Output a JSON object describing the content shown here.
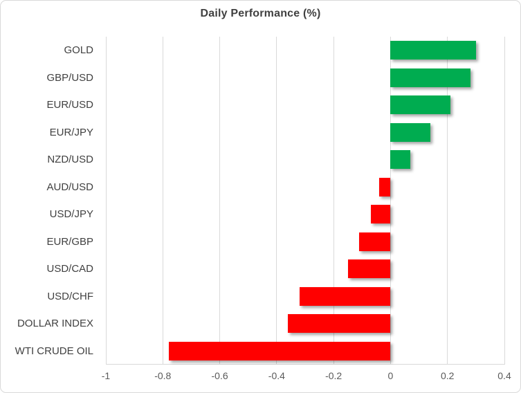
{
  "chart_data": {
    "type": "bar",
    "orientation": "horizontal",
    "title": "Daily Performance (%)",
    "categories": [
      "GOLD",
      "GBP/USD",
      "EUR/USD",
      "EUR/JPY",
      "NZD/USD",
      "AUD/USD",
      "USD/JPY",
      "EUR/GBP",
      "USD/CAD",
      "USD/CHF",
      "DOLLAR INDEX",
      "WTI CRUDE OIL"
    ],
    "values": [
      0.3,
      0.28,
      0.21,
      0.14,
      0.07,
      -0.04,
      -0.07,
      -0.11,
      -0.15,
      -0.32,
      -0.36,
      -0.78
    ],
    "xlabel": "",
    "ylabel": "",
    "xlim": [
      -1,
      0.4
    ],
    "x_ticks": [
      -1,
      -0.8,
      -0.6,
      -0.4,
      -0.2,
      0,
      0.2,
      0.4
    ],
    "x_tick_labels": [
      "-1",
      "-0.8",
      "-0.6",
      "-0.4",
      "-0.2",
      "0",
      "0.2",
      "0.4"
    ],
    "grid": true,
    "legend": "none",
    "colors": {
      "positive": "#00AC50",
      "negative": "#FF0000",
      "gridline": "#D9D9D9",
      "title_text": "#404040",
      "category_text": "#404040",
      "tick_text": "#595959",
      "background": "#FFFFFF",
      "border": "#D9D9D9"
    }
  }
}
